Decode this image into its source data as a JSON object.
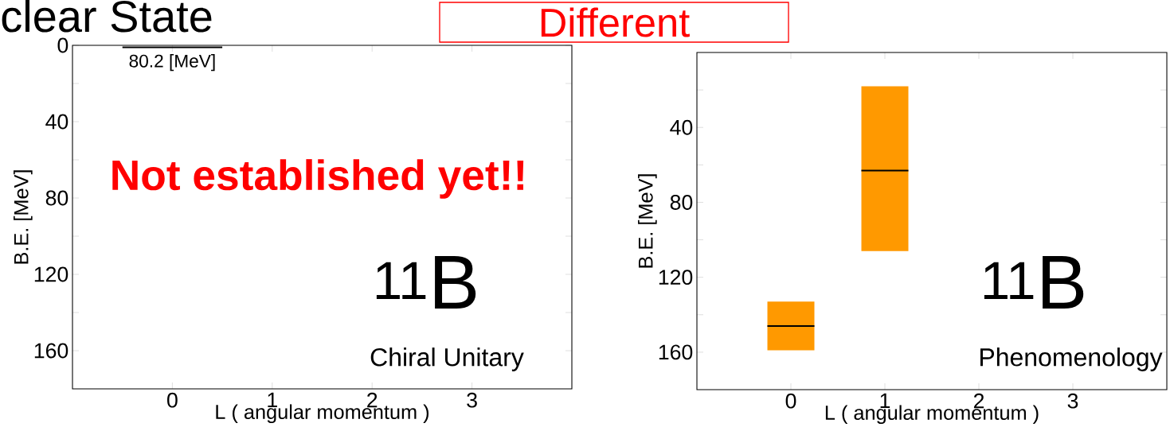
{
  "chart_data": [
    {
      "type": "line",
      "title": "clear State",
      "xlabel": "L ( angular momentum )",
      "ylabel": "B.E. [MeV]",
      "xlim": [
        -1,
        4
      ],
      "xticks": [
        0,
        1,
        2,
        3
      ],
      "ylim": [
        180,
        0
      ],
      "yticks": [
        0,
        {
          "value": 20,
          "label": null
        },
        40,
        {
          "value": 60,
          "label": null
        },
        80,
        {
          "value": 100,
          "label": null
        },
        120,
        {
          "value": 140,
          "label": null
        },
        160
      ],
      "series": [
        {
          "color": "#000000",
          "x": [
            -0.5,
            0.5
          ],
          "values": [
            1,
            1
          ]
        }
      ],
      "annotations": [
        {
          "text": "80.2 [MeV]",
          "x": 0,
          "y": 1
        },
        "$^{11}$B",
        "Chiral Unitary",
        "Not established yet!!"
      ]
    },
    {
      "type": "bar",
      "xlabel": "L ( angular momentum )",
      "ylabel": "B.E. [MeV]",
      "xlim": [
        -1,
        4
      ],
      "xticks": [
        0,
        1,
        2,
        3
      ],
      "ylim": [
        180,
        0
      ],
      "yticks": [
        {
          "value": 20,
          "label": null
        },
        40,
        {
          "value": 60,
          "label": null
        },
        80,
        {
          "value": 100,
          "label": null
        },
        120,
        {
          "value": 140,
          "label": null
        },
        160
      ],
      "series": [
        {
          "type": "bar",
          "color": "#ff9900",
          "x": [
            0,
            1
          ],
          "base": [
            133,
            18
          ],
          "values": [
            26,
            88
          ]
        },
        {
          "type": "line",
          "color": "#000000",
          "x": [
            -0.25,
            0.25
          ],
          "values": [
            146,
            146
          ]
        },
        {
          "type": "line",
          "color": "#000000",
          "x": [
            0.75,
            1.25
          ],
          "values": [
            63,
            63
          ]
        }
      ],
      "annotations": [
        "Different",
        "$^{11}$B",
        "Phenomenology"
      ]
    }
  ]
}
